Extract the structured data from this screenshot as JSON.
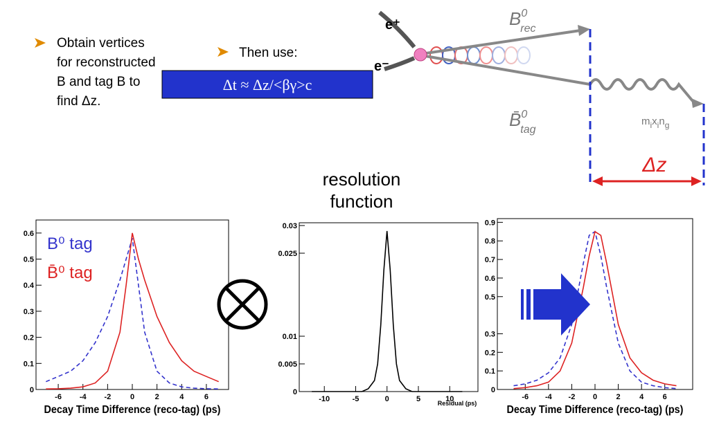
{
  "bullets": [
    {
      "lines": [
        "Obtain vertices",
        "for reconstructed",
        "B and tag B to",
        "find Δz."
      ]
    },
    {
      "lines": [
        "Then use:"
      ]
    }
  ],
  "formula": "Δt ≈ Δz/<βγ>c",
  "diagram": {
    "e_plus": "e⁺",
    "e_minus": "e⁻",
    "b_rec": {
      "base": "B",
      "sup": "0",
      "sub": "rec"
    },
    "b_tag": {
      "base": "B̄",
      "sup": "0",
      "sub": "tag"
    },
    "mixing": [
      "m",
      "i",
      "x",
      "i",
      "n",
      "g"
    ],
    "dz": "Δz"
  },
  "resolution_label": [
    "resolution",
    "function"
  ],
  "chart_data": [
    {
      "type": "line",
      "x_label": "Decay Time Difference (reco-tag) (ps)",
      "xlim": [
        -7.8,
        7.8
      ],
      "ylim": [
        0,
        0.65
      ],
      "xticks": [
        -6,
        -4,
        -2,
        0,
        2,
        4,
        6
      ],
      "yticks": [
        0,
        0.1,
        0.2,
        0.3,
        0.4,
        0.5,
        0.6
      ],
      "x": [
        -7,
        -6,
        -5,
        -4,
        -3,
        -2,
        -1,
        -0.5,
        0,
        0.5,
        1,
        2,
        3,
        4,
        5,
        6,
        7
      ],
      "series": [
        {
          "name": "B⁰ tag",
          "color": "#3333cc",
          "style": "dashed",
          "values": [
            0.03,
            0.05,
            0.07,
            0.11,
            0.18,
            0.28,
            0.42,
            0.5,
            0.58,
            0.4,
            0.22,
            0.07,
            0.025,
            0.01,
            0.005,
            0.003,
            0.002
          ]
        },
        {
          "name": "B̄⁰ tag",
          "color": "#dd2222",
          "style": "solid",
          "values": [
            0.002,
            0.003,
            0.005,
            0.01,
            0.025,
            0.07,
            0.22,
            0.4,
            0.6,
            0.5,
            0.42,
            0.28,
            0.18,
            0.11,
            0.07,
            0.05,
            0.03
          ]
        }
      ]
    },
    {
      "type": "line",
      "x_label": "Residual (ps)",
      "xlim": [
        -14,
        14.5
      ],
      "ylim": [
        0,
        0.0305
      ],
      "xticks": [
        -10,
        -5,
        0,
        5,
        10
      ],
      "yticks": [
        0,
        0.005,
        0.01,
        0.025,
        0.03
      ],
      "x": [
        -12,
        -4,
        -3,
        -2,
        -1.5,
        -1,
        -0.5,
        0,
        0.5,
        1,
        1.5,
        2,
        3,
        4,
        12
      ],
      "series": [
        {
          "color": "#000000",
          "style": "solid",
          "values": [
            0,
            0,
            0.0005,
            0.002,
            0.005,
            0.012,
            0.022,
            0.029,
            0.022,
            0.012,
            0.005,
            0.002,
            0.0005,
            0,
            0
          ]
        }
      ]
    },
    {
      "type": "line",
      "x_label": "Decay Time Difference (reco-tag) (ps)",
      "xlim": [
        -8.4,
        8.4
      ],
      "ylim": [
        0,
        0.92
      ],
      "xticks": [
        -6,
        -4,
        -2,
        0,
        2,
        4,
        6
      ],
      "yticks": [
        0,
        0.1,
        0.2,
        0.3,
        0.5,
        0.6,
        0.7,
        0.8,
        0.9
      ],
      "x": [
        -7,
        -6,
        -5,
        -4,
        -3,
        -2,
        -1,
        -0.5,
        0,
        0.5,
        1,
        2,
        3,
        4,
        5,
        6,
        7
      ],
      "series": [
        {
          "color": "#3333cc",
          "style": "dashed",
          "values": [
            0.02,
            0.03,
            0.05,
            0.09,
            0.17,
            0.35,
            0.68,
            0.83,
            0.85,
            0.72,
            0.55,
            0.25,
            0.1,
            0.04,
            0.02,
            0.01,
            0.005
          ]
        },
        {
          "color": "#dd2222",
          "style": "solid",
          "values": [
            0.005,
            0.01,
            0.02,
            0.04,
            0.1,
            0.25,
            0.55,
            0.72,
            0.85,
            0.83,
            0.68,
            0.35,
            0.17,
            0.09,
            0.05,
            0.03,
            0.02
          ]
        }
      ]
    }
  ]
}
